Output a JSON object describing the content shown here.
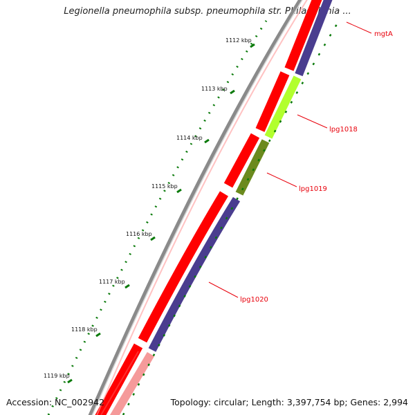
{
  "title": "Legionella pneumophila subsp. pneumophila str. Philadelphia ...",
  "footer": {
    "accession": "Accession: NC_002942",
    "summary": "Topology: circular; Length: 3,397,754 bp; Genes: 2,994"
  },
  "ticks": [
    {
      "label": "1112 kbp"
    },
    {
      "label": "1113 kbp"
    },
    {
      "label": "1114 kbp"
    },
    {
      "label": "1115 kbp"
    },
    {
      "label": "1116 kbp"
    },
    {
      "label": "1117 kbp"
    },
    {
      "label": "1118 kbp"
    },
    {
      "label": "1119 kbp"
    }
  ],
  "genes": [
    {
      "name": "mgtA"
    },
    {
      "name": "lpg1018"
    },
    {
      "name": "lpg1019"
    },
    {
      "name": "lpg1020"
    }
  ],
  "colors": {
    "backbone": "#8a8a8a",
    "cds_track": "#ff0000",
    "cds_track_faded": "#f59a9a",
    "gene_track": "#4a3d8f",
    "gene_track_faded": "#c8c6e0",
    "lpg1018": "#b2ff2e",
    "lpg1019": "#6b8a1e",
    "label": "#e8000b",
    "tick": "#0a7a0a"
  }
}
